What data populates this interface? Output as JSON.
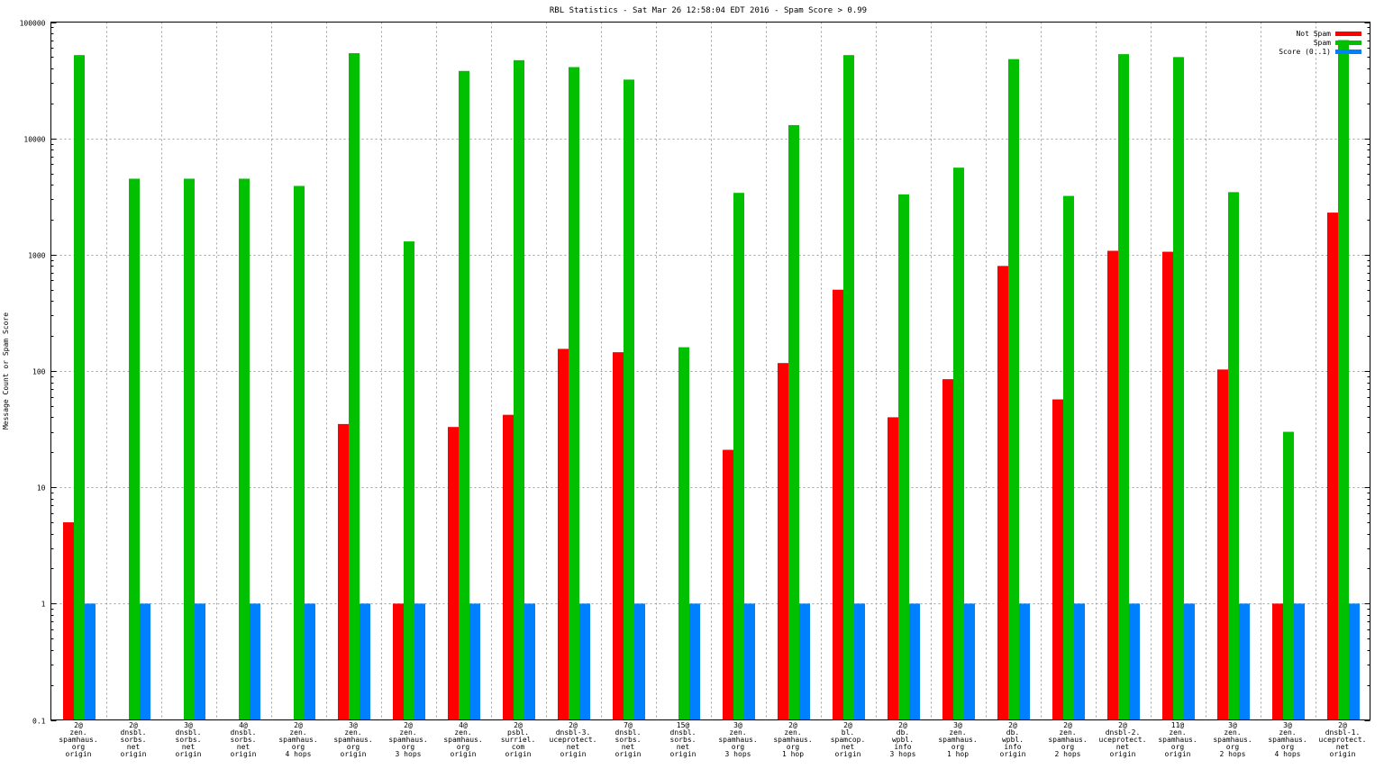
{
  "chart_data": {
    "type": "bar",
    "title": "RBL Statistics - Sat Mar 26 12:58:04 EDT 2016 - Spam Score > 0.99",
    "xlabel": "",
    "ylabel": "Message Count or Spam Score",
    "yscale": "log",
    "ylim": [
      0.1,
      100000
    ],
    "yticks": [
      "0.1",
      "1",
      "10",
      "100",
      "1000",
      "10000",
      "100000"
    ],
    "grid": true,
    "legend_position": "top-right",
    "categories": [
      [
        "2@",
        "zen.",
        "spamhaus.",
        "org",
        "origin"
      ],
      [
        "2@",
        "dnsbl.",
        "sorbs.",
        "net",
        "origin"
      ],
      [
        "3@",
        "dnsbl.",
        "sorbs.",
        "net",
        "origin"
      ],
      [
        "4@",
        "dnsbl.",
        "sorbs.",
        "net",
        "origin"
      ],
      [
        "2@",
        "zen.",
        "spamhaus.",
        "org",
        "4 hops"
      ],
      [
        "3@",
        "zen.",
        "spamhaus.",
        "org",
        "origin"
      ],
      [
        "2@",
        "zen.",
        "spamhaus.",
        "org",
        "3 hops"
      ],
      [
        "4@",
        "zen.",
        "spamhaus.",
        "org",
        "origin"
      ],
      [
        "2@",
        "psbl.",
        "surriel.",
        "com",
        "origin"
      ],
      [
        "2@",
        "dnsbl-3.",
        "uceprotect.",
        "net",
        "origin"
      ],
      [
        "7@",
        "dnsbl.",
        "sorbs.",
        "net",
        "origin"
      ],
      [
        "15@",
        "dnsbl.",
        "sorbs.",
        "net",
        "origin"
      ],
      [
        "3@",
        "zen.",
        "spamhaus.",
        "org",
        "3 hops"
      ],
      [
        "2@",
        "zen.",
        "spamhaus.",
        "org",
        "1 hop"
      ],
      [
        "2@",
        "bl.",
        "spamcop.",
        "net",
        "origin"
      ],
      [
        "2@",
        "db.",
        "wpbl.",
        "info",
        "3 hops"
      ],
      [
        "3@",
        "zen.",
        "spamhaus.",
        "org",
        "1 hop"
      ],
      [
        "2@",
        "db.",
        "wpbl.",
        "info",
        "origin"
      ],
      [
        "2@",
        "zen.",
        "spamhaus.",
        "org",
        "2 hops"
      ],
      [
        "2@",
        "dnsbl-2.",
        "uceprotect.",
        "net",
        "origin"
      ],
      [
        "11@",
        "zen.",
        "spamhaus.",
        "org",
        "origin"
      ],
      [
        "3@",
        "zen.",
        "spamhaus.",
        "org",
        "2 hops"
      ],
      [
        "3@",
        "zen.",
        "spamhaus.",
        "org",
        "4 hops"
      ],
      [
        "2@",
        "dnsbl-1.",
        "uceprotect.",
        "net",
        "origin"
      ]
    ],
    "series": [
      {
        "name": "Not Spam",
        "color": "#ff0000",
        "values": [
          5,
          null,
          null,
          null,
          null,
          35,
          1,
          33,
          42,
          155,
          145,
          null,
          21,
          117,
          500,
          40,
          85,
          800,
          57,
          1080,
          1060,
          103,
          1,
          2300
        ]
      },
      {
        "name": "Spam",
        "color": "#00c000",
        "values": [
          52000,
          4500,
          4500,
          4500,
          3900,
          54000,
          1300,
          38000,
          47000,
          41000,
          32000,
          160,
          3400,
          13000,
          52000,
          3300,
          5600,
          48000,
          3200,
          53000,
          50000,
          3450,
          30,
          70000
        ]
      },
      {
        "name": "Score (0..1)",
        "color": "#0080ff",
        "values": [
          1,
          1,
          1,
          1,
          1,
          1,
          1,
          1,
          1,
          1,
          1,
          1,
          1,
          1,
          1,
          1,
          1,
          1,
          1,
          1,
          1,
          1,
          1,
          1
        ]
      }
    ]
  }
}
